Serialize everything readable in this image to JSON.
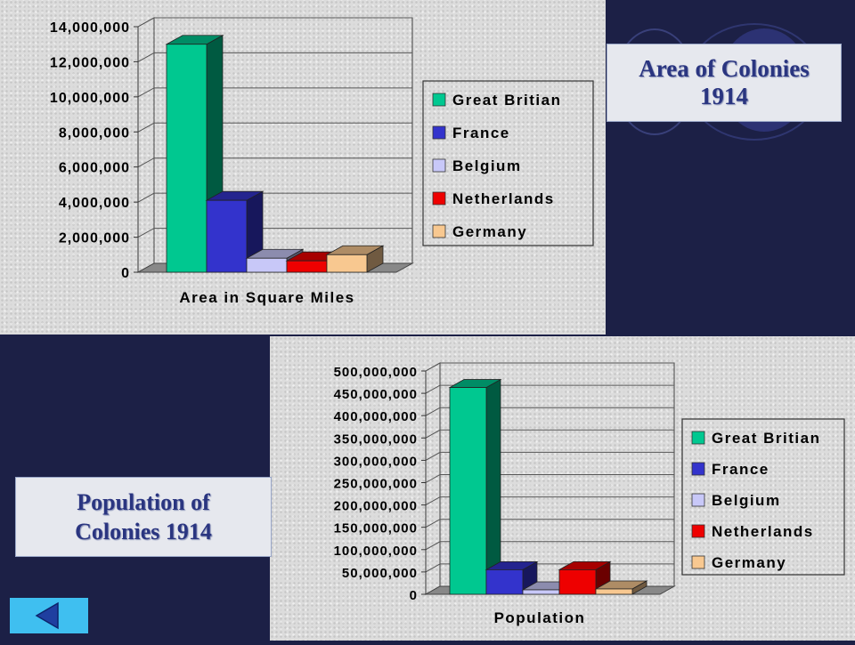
{
  "titles": {
    "area_line1": "Area of Colonies",
    "area_line2": "1914",
    "pop_line1": "Population of",
    "pop_line2": "Colonies 1914"
  },
  "colors": {
    "Great Britian": "#00c890",
    "France": "#3333cc",
    "Belgium": "#c8c8f8",
    "Netherlands": "#ee0000",
    "Germany": "#f8c890",
    "background": "#1c2046",
    "panel": "#dcdcdc",
    "title_text": "#2a3580",
    "back_button": "#3fbff0"
  },
  "nav": {
    "back_icon": "back-arrow-icon"
  },
  "chart_data": [
    {
      "type": "bar",
      "style": "3d-clustered",
      "title": "",
      "xlabel": "Area in Square Miles",
      "ylabel": "",
      "ylim": [
        0,
        14000000
      ],
      "yticks": [
        "0",
        "2,000,000",
        "4,000,000",
        "6,000,000",
        "8,000,000",
        "10,000,000",
        "12,000,000",
        "14,000,000"
      ],
      "grid": true,
      "legend_position": "right",
      "series": [
        {
          "name": "Great Britian",
          "values": [
            13000000
          ]
        },
        {
          "name": "France",
          "values": [
            4100000
          ]
        },
        {
          "name": "Belgium",
          "values": [
            800000
          ]
        },
        {
          "name": "Netherlands",
          "values": [
            650000
          ]
        },
        {
          "name": "Germany",
          "values": [
            1000000
          ]
        }
      ]
    },
    {
      "type": "bar",
      "style": "3d-clustered",
      "title": "",
      "xlabel": "Population",
      "ylabel": "",
      "ylim": [
        0,
        500000000
      ],
      "yticks": [
        "0",
        "50,000,000",
        "100,000,000",
        "150,000,000",
        "200,000,000",
        "250,000,000",
        "300,000,000",
        "350,000,000",
        "400,000,000",
        "450,000,000",
        "500,000,000"
      ],
      "grid": true,
      "legend_position": "right",
      "series": [
        {
          "name": "Great Britian",
          "values": [
            463000000
          ]
        },
        {
          "name": "France",
          "values": [
            55000000
          ]
        },
        {
          "name": "Belgium",
          "values": [
            10000000
          ]
        },
        {
          "name": "Netherlands",
          "values": [
            55000000
          ]
        },
        {
          "name": "Germany",
          "values": [
            12000000
          ]
        }
      ]
    }
  ]
}
